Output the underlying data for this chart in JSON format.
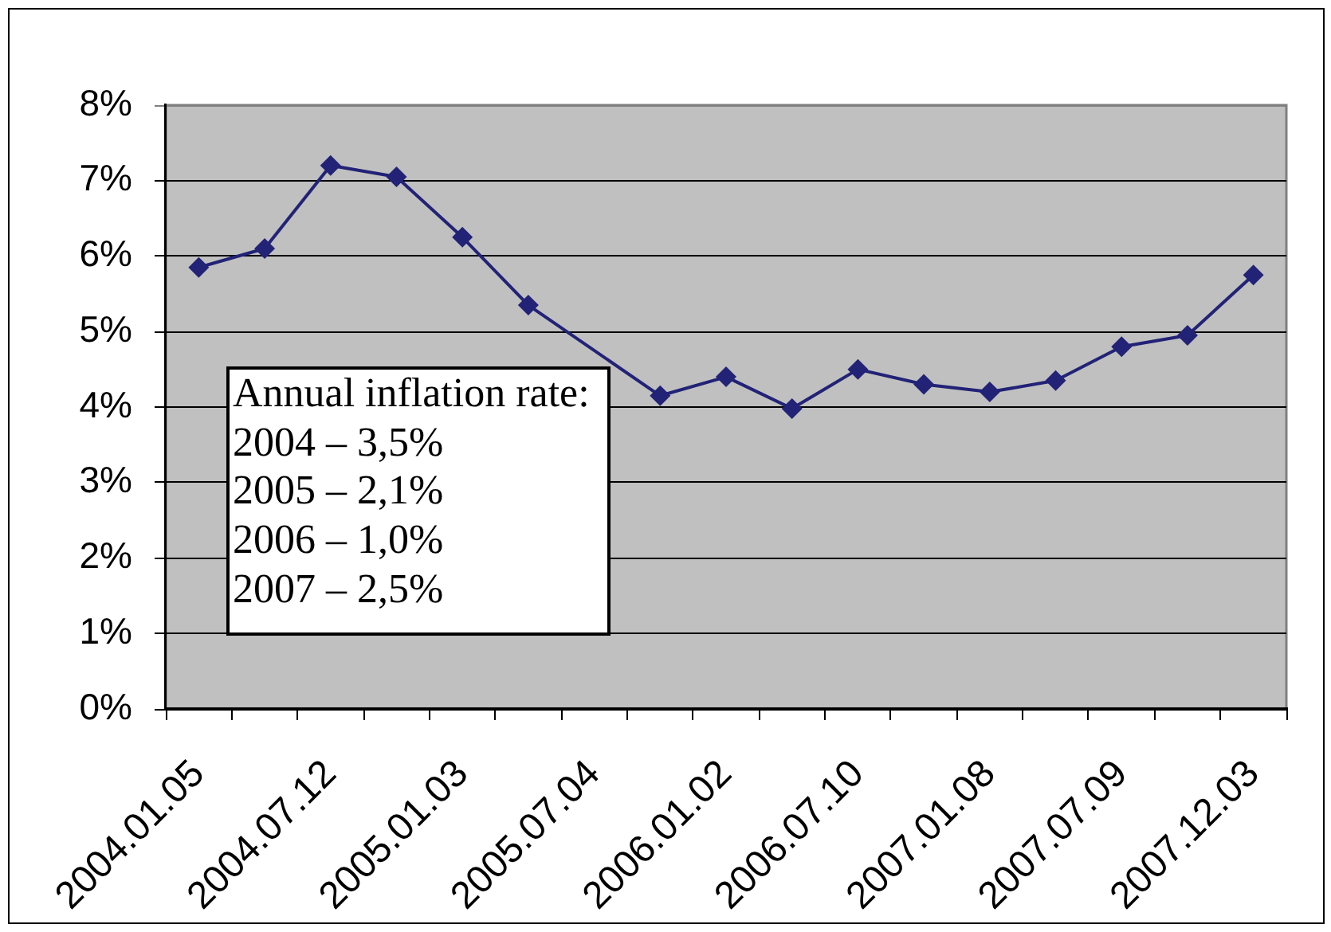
{
  "chart_data": {
    "type": "line",
    "categories": [
      "2004.01.05",
      null,
      "2004.07.12",
      null,
      "2005.01.03",
      null,
      "2005.07.04",
      null,
      "2006.01.02",
      null,
      "2006.07.10",
      null,
      "2007.01.08",
      null,
      "2007.07.09",
      null,
      "2007.12.03"
    ],
    "values": [
      5.85,
      6.1,
      7.2,
      7.05,
      6.25,
      5.35,
      null,
      4.15,
      4.4,
      3.98,
      4.5,
      4.3,
      4.2,
      4.35,
      4.8,
      4.95,
      5.75
    ],
    "color": "#222277",
    "ylim": [
      0,
      8
    ],
    "yticks": [
      {
        "value": 0,
        "label": "0%"
      },
      {
        "value": 1,
        "label": "1%"
      },
      {
        "value": 2,
        "label": "2%"
      },
      {
        "value": 3,
        "label": "3%"
      },
      {
        "value": 4,
        "label": "4%"
      },
      {
        "value": 5,
        "label": "5%"
      },
      {
        "value": 6,
        "label": "6%"
      },
      {
        "value": 7,
        "label": "7%"
      },
      {
        "value": 8,
        "label": "8%"
      }
    ],
    "grid": "y",
    "marker": "diamond",
    "annotations": [
      "Annual inflation rate:",
      "2004 – 3,5%",
      "2005 – 2,1%",
      "2006 – 1,0%",
      "2007 – 2,5%"
    ]
  }
}
